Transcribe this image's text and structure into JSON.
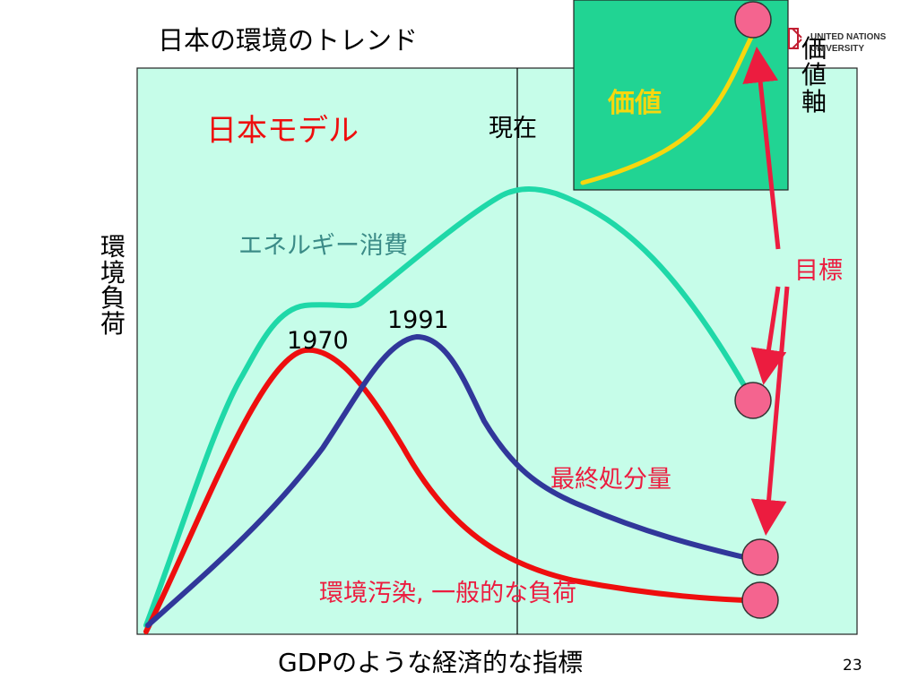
{
  "slide": {
    "title": "日本の環境のトレンド",
    "number": "23"
  },
  "logo": {
    "text": "UNITED NATIONS\nUNIVERSITY"
  },
  "axes": {
    "x_title": "GDPのような経済的な指標",
    "y_title": "環境負荷",
    "value_axis": "価値軸"
  },
  "labels": {
    "model": "日本モデル",
    "present": "現在",
    "energy": "エネルギー消費",
    "year_1970": "1970",
    "year_1991": "1991",
    "waste": "最終処分量",
    "pollution": "環境汚染, 一般的な負荷",
    "target": "目標",
    "value": "価値"
  },
  "colors": {
    "plot_background": "#c6fde9",
    "energy_line": "#1fd8a8",
    "pollution_line": "#ee0e0e",
    "waste_line": "#31379a",
    "inset_background": "#21d493",
    "value_line": "#f7d70e",
    "arrow": "#ec1c3f",
    "target_circle": "#f4648f",
    "model_text": "#ee0e0e",
    "energy_text": "#3b8b87",
    "red_text": "#ec1c3f",
    "value_text": "#f7d70e"
  }
}
